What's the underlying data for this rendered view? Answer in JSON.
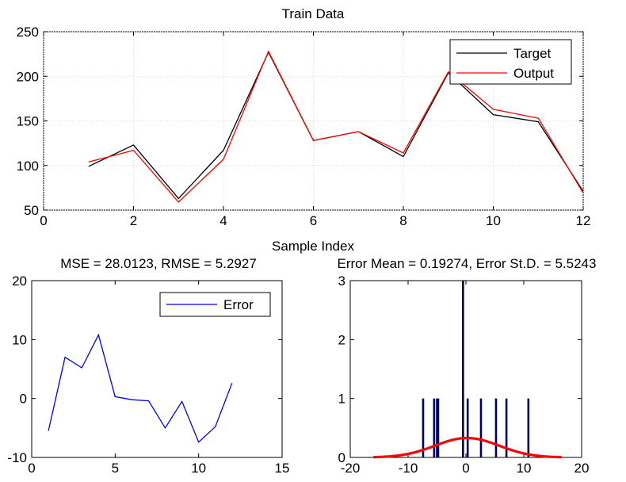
{
  "chart_data": [
    {
      "type": "line",
      "title": "Train Data",
      "xlabel": "Sample Index",
      "ylabel": "",
      "xlim": [
        0,
        12
      ],
      "ylim": [
        50,
        250
      ],
      "xticks": [
        "0",
        "2",
        "4",
        "6",
        "8",
        "10",
        "12"
      ],
      "yticks": [
        "50",
        "100",
        "150",
        "200",
        "250"
      ],
      "grid": true,
      "legend_position": "top-right",
      "x": [
        1,
        2,
        3,
        4,
        5,
        6,
        7,
        8,
        9,
        10,
        11,
        12
      ],
      "series": [
        {
          "name": "Target",
          "color": "#000000",
          "values": [
            99,
            123,
            63,
            117,
            227,
            128,
            138,
            110,
            204,
            157,
            149,
            71
          ]
        },
        {
          "name": "Output",
          "color": "#ff0000",
          "values": [
            104,
            117,
            59,
            107,
            228,
            128,
            138,
            114,
            205,
            163,
            153,
            69
          ]
        }
      ]
    },
    {
      "type": "line",
      "title": "MSE = 28.0123, RMSE = 5.2927",
      "xlabel": "",
      "ylabel": "",
      "xlim": [
        0,
        15
      ],
      "ylim": [
        -10,
        20
      ],
      "xticks": [
        "0",
        "5",
        "10",
        "15"
      ],
      "yticks": [
        "-10",
        "0",
        "10",
        "20"
      ],
      "grid": false,
      "legend_position": "top-right",
      "x": [
        1,
        2,
        3,
        4,
        5,
        6,
        7,
        8,
        9,
        10,
        11,
        12
      ],
      "series": [
        {
          "name": "Error",
          "color": "#0000ff",
          "values": [
            -5.5,
            7,
            5.2,
            10.8,
            0.3,
            -0.2,
            -0.4,
            -5,
            -0.5,
            -7.4,
            -4.8,
            2.6
          ]
        }
      ]
    },
    {
      "type": "bar",
      "title": "Error Mean = 0.19274, Error St.D. = 5.5243",
      "xlabel": "",
      "ylabel": "",
      "xlim": [
        -20,
        20
      ],
      "ylim": [
        0,
        3
      ],
      "xticks": [
        "-20",
        "-10",
        "0",
        "10",
        "20"
      ],
      "yticks": [
        "0",
        "1",
        "2",
        "3"
      ],
      "grid": false,
      "bars": [
        {
          "x": -7.4,
          "value": 1
        },
        {
          "x": -5.5,
          "value": 1
        },
        {
          "x": -5.0,
          "value": 1
        },
        {
          "x": -4.8,
          "value": 1
        },
        {
          "x": -0.5,
          "value": 3
        },
        {
          "x": 0.3,
          "value": 1
        },
        {
          "x": 2.6,
          "value": 1
        },
        {
          "x": 5.2,
          "value": 1
        },
        {
          "x": 7.0,
          "value": 1
        },
        {
          "x": 10.8,
          "value": 1
        }
      ],
      "bar_color": "#000066",
      "fit_curve": {
        "color": "#ff0000",
        "mean": 0.19274,
        "std": 5.5243,
        "x_range": [
          -16,
          16.5
        ],
        "peak": 0.33
      }
    }
  ]
}
